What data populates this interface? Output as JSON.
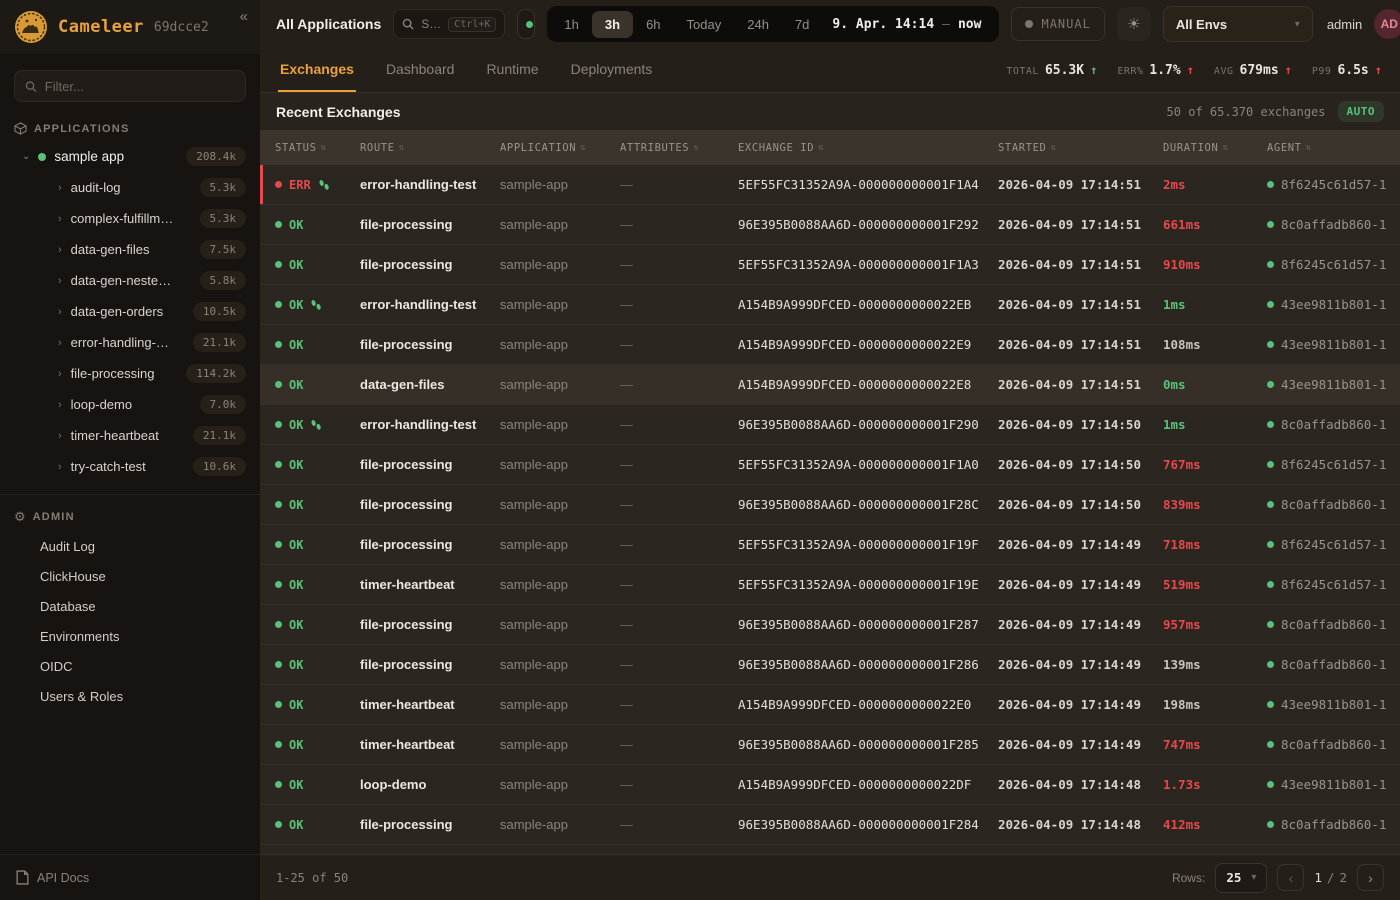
{
  "brand": {
    "name": "Cameleer",
    "env_id": "69dcce2",
    "collapse_icon": "«"
  },
  "sidebar": {
    "filter_placeholder": "Filter...",
    "applications_label": "APPLICATIONS",
    "app": {
      "name": "sample app",
      "count": "208.4k"
    },
    "routes": [
      {
        "label": "audit-log",
        "count": "5.3k"
      },
      {
        "label": "complex-fulfillm…",
        "count": "5.3k"
      },
      {
        "label": "data-gen-files",
        "count": "7.5k"
      },
      {
        "label": "data-gen-neste…",
        "count": "5.8k"
      },
      {
        "label": "data-gen-orders",
        "count": "10.5k"
      },
      {
        "label": "error-handling-…",
        "count": "21.1k"
      },
      {
        "label": "file-processing",
        "count": "114.2k"
      },
      {
        "label": "loop-demo",
        "count": "7.0k"
      },
      {
        "label": "timer-heartbeat",
        "count": "21.1k"
      },
      {
        "label": "try-catch-test",
        "count": "10.6k"
      }
    ],
    "admin_label": "ADMIN",
    "admin_items": [
      "Audit Log",
      "ClickHouse",
      "Database",
      "Environments",
      "OIDC",
      "Users & Roles"
    ],
    "api_docs_label": "API Docs"
  },
  "topbar": {
    "scope_label": "All Applications",
    "search_text": "S…",
    "search_shortcut": "Ctrl+K",
    "live_label": "O",
    "time_ranges": [
      "1h",
      "3h",
      "6h",
      "Today",
      "24h",
      "7d"
    ],
    "active_range": "3h",
    "date_from": "9. Apr. 14:14",
    "date_sep": "–",
    "date_to": "now",
    "manual_label": "MANUAL",
    "env_selector_value": "All Envs",
    "user_name": "admin",
    "user_initials": "AD"
  },
  "tabs": {
    "items": [
      "Exchanges",
      "Dashboard",
      "Runtime",
      "Deployments"
    ],
    "active": "Exchanges"
  },
  "stats": [
    {
      "label": "TOTAL",
      "value": "65.3K",
      "arrow": "↑",
      "color": "green"
    },
    {
      "label": "ERR%",
      "value": "1.7%",
      "arrow": "↑",
      "color": "red"
    },
    {
      "label": "AVG",
      "value": "679ms",
      "arrow": "↑",
      "color": "red"
    },
    {
      "label": "P99",
      "value": "6.5s",
      "arrow": "↑",
      "color": "red"
    }
  ],
  "exchanges": {
    "title": "Recent Exchanges",
    "summary": "50 of 65.370 exchanges",
    "auto_label": "AUTO",
    "columns": [
      "STATUS",
      "ROUTE",
      "APPLICATION",
      "ATTRIBUTES",
      "EXCHANGE ID",
      "STARTED",
      "DURATION",
      "AGENT"
    ],
    "rows": [
      {
        "status": "ERR",
        "trace": true,
        "route": "error-handling-test",
        "application": "sample-app",
        "attributes": "—",
        "exchange_id": "5EF55FC31352A9A-000000000001F1A4",
        "started": "2026-04-09 17:14:51",
        "duration": "2ms",
        "duration_color": "red",
        "agent": "8f6245c61d57-1",
        "highlight": false
      },
      {
        "status": "OK",
        "trace": false,
        "route": "file-processing",
        "application": "sample-app",
        "attributes": "—",
        "exchange_id": "96E395B0088AA6D-000000000001F292",
        "started": "2026-04-09 17:14:51",
        "duration": "661ms",
        "duration_color": "red",
        "agent": "8c0affadb860-1",
        "highlight": false
      },
      {
        "status": "OK",
        "trace": false,
        "route": "file-processing",
        "application": "sample-app",
        "attributes": "—",
        "exchange_id": "5EF55FC31352A9A-000000000001F1A3",
        "started": "2026-04-09 17:14:51",
        "duration": "910ms",
        "duration_color": "red",
        "agent": "8f6245c61d57-1",
        "highlight": false
      },
      {
        "status": "OK",
        "trace": true,
        "route": "error-handling-test",
        "application": "sample-app",
        "attributes": "—",
        "exchange_id": "A154B9A999DFCED-0000000000022EB",
        "started": "2026-04-09 17:14:51",
        "duration": "1ms",
        "duration_color": "green",
        "agent": "43ee9811b801-1",
        "highlight": false
      },
      {
        "status": "OK",
        "trace": false,
        "route": "file-processing",
        "application": "sample-app",
        "attributes": "—",
        "exchange_id": "A154B9A999DFCED-0000000000022E9",
        "started": "2026-04-09 17:14:51",
        "duration": "108ms",
        "duration_color": "dim",
        "agent": "43ee9811b801-1",
        "highlight": false
      },
      {
        "status": "OK",
        "trace": false,
        "route": "data-gen-files",
        "application": "sample-app",
        "attributes": "—",
        "exchange_id": "A154B9A999DFCED-0000000000022E8",
        "started": "2026-04-09 17:14:51",
        "duration": "0ms",
        "duration_color": "green",
        "agent": "43ee9811b801-1",
        "highlight": true
      },
      {
        "status": "OK",
        "trace": true,
        "route": "error-handling-test",
        "application": "sample-app",
        "attributes": "—",
        "exchange_id": "96E395B0088AA6D-000000000001F290",
        "started": "2026-04-09 17:14:50",
        "duration": "1ms",
        "duration_color": "green",
        "agent": "8c0affadb860-1",
        "highlight": false
      },
      {
        "status": "OK",
        "trace": false,
        "route": "file-processing",
        "application": "sample-app",
        "attributes": "—",
        "exchange_id": "5EF55FC31352A9A-000000000001F1A0",
        "started": "2026-04-09 17:14:50",
        "duration": "767ms",
        "duration_color": "red",
        "agent": "8f6245c61d57-1",
        "highlight": false
      },
      {
        "status": "OK",
        "trace": false,
        "route": "file-processing",
        "application": "sample-app",
        "attributes": "—",
        "exchange_id": "96E395B0088AA6D-000000000001F28C",
        "started": "2026-04-09 17:14:50",
        "duration": "839ms",
        "duration_color": "red",
        "agent": "8c0affadb860-1",
        "highlight": false
      },
      {
        "status": "OK",
        "trace": false,
        "route": "file-processing",
        "application": "sample-app",
        "attributes": "—",
        "exchange_id": "5EF55FC31352A9A-000000000001F19F",
        "started": "2026-04-09 17:14:49",
        "duration": "718ms",
        "duration_color": "red",
        "agent": "8f6245c61d57-1",
        "highlight": false
      },
      {
        "status": "OK",
        "trace": false,
        "route": "timer-heartbeat",
        "application": "sample-app",
        "attributes": "—",
        "exchange_id": "5EF55FC31352A9A-000000000001F19E",
        "started": "2026-04-09 17:14:49",
        "duration": "519ms",
        "duration_color": "red",
        "agent": "8f6245c61d57-1",
        "highlight": false
      },
      {
        "status": "OK",
        "trace": false,
        "route": "file-processing",
        "application": "sample-app",
        "attributes": "—",
        "exchange_id": "96E395B0088AA6D-000000000001F287",
        "started": "2026-04-09 17:14:49",
        "duration": "957ms",
        "duration_color": "red",
        "agent": "8c0affadb860-1",
        "highlight": false
      },
      {
        "status": "OK",
        "trace": false,
        "route": "file-processing",
        "application": "sample-app",
        "attributes": "—",
        "exchange_id": "96E395B0088AA6D-000000000001F286",
        "started": "2026-04-09 17:14:49",
        "duration": "139ms",
        "duration_color": "dim",
        "agent": "8c0affadb860-1",
        "highlight": false
      },
      {
        "status": "OK",
        "trace": false,
        "route": "timer-heartbeat",
        "application": "sample-app",
        "attributes": "—",
        "exchange_id": "A154B9A999DFCED-0000000000022E0",
        "started": "2026-04-09 17:14:49",
        "duration": "198ms",
        "duration_color": "dim",
        "agent": "43ee9811b801-1",
        "highlight": false
      },
      {
        "status": "OK",
        "trace": false,
        "route": "timer-heartbeat",
        "application": "sample-app",
        "attributes": "—",
        "exchange_id": "96E395B0088AA6D-000000000001F285",
        "started": "2026-04-09 17:14:49",
        "duration": "747ms",
        "duration_color": "red",
        "agent": "8c0affadb860-1",
        "highlight": false
      },
      {
        "status": "OK",
        "trace": false,
        "route": "loop-demo",
        "application": "sample-app",
        "attributes": "—",
        "exchange_id": "A154B9A999DFCED-0000000000022DF",
        "started": "2026-04-09 17:14:48",
        "duration": "1.73s",
        "duration_color": "red",
        "agent": "43ee9811b801-1",
        "highlight": false
      },
      {
        "status": "OK",
        "trace": false,
        "route": "file-processing",
        "application": "sample-app",
        "attributes": "—",
        "exchange_id": "96E395B0088AA6D-000000000001F284",
        "started": "2026-04-09 17:14:48",
        "duration": "412ms",
        "duration_color": "red",
        "agent": "8c0affadb860-1",
        "highlight": false
      }
    ]
  },
  "footer": {
    "range_text": "1-25 of 50",
    "rows_label": "Rows:",
    "rows_per_page": "25",
    "page_current": "1",
    "page_separator": "/",
    "page_total": "2",
    "prev_icon": "‹",
    "next_icon": "›"
  },
  "colors": {
    "accent": "#e9a23b",
    "green": "#58c27a",
    "red": "#e5484d"
  }
}
